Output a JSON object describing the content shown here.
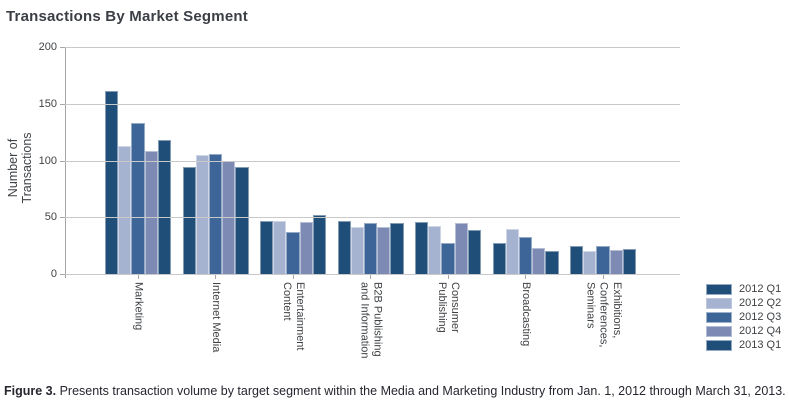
{
  "title": "Transactions By Market Segment",
  "caption": {
    "prefix": "Figure 3.",
    "text": " Presents transaction volume by target segment within the Media and Marketing Industry from Jan. 1, 2012 through March 31, 2013."
  },
  "chart_data": {
    "type": "bar",
    "title": "Transactions By Market Segment",
    "xlabel": "",
    "ylabel": "Number of Transactions",
    "ylim": [
      0,
      200
    ],
    "yticks": [
      0,
      50,
      100,
      150,
      200
    ],
    "grid": true,
    "legend_position": "bottom-right",
    "categories": [
      "Marketing",
      "Internet Media",
      "Entertainment\nContent",
      "B2B Publishing\nand Information",
      "Consumer\nPublishing",
      "Broadcasting",
      "Exhibitions,\nConferences,\nSeminars"
    ],
    "series": [
      {
        "name": "2012 Q1",
        "color": "#1F4E79",
        "values": [
          161,
          94,
          47,
          47,
          46,
          27,
          25
        ]
      },
      {
        "name": "2012 Q2",
        "color": "#A5B3D1",
        "values": [
          113,
          105,
          47,
          41,
          42,
          40,
          20
        ]
      },
      {
        "name": "2012 Q3",
        "color": "#3E6598",
        "values": [
          133,
          106,
          37,
          45,
          27,
          33,
          25
        ]
      },
      {
        "name": "2012 Q4",
        "color": "#7C8AB4",
        "values": [
          108,
          100,
          46,
          41,
          45,
          23,
          21
        ]
      },
      {
        "name": "2013 Q1",
        "color": "#1F4E79",
        "values": [
          118,
          94,
          52,
          45,
          39,
          20,
          22
        ]
      }
    ]
  }
}
